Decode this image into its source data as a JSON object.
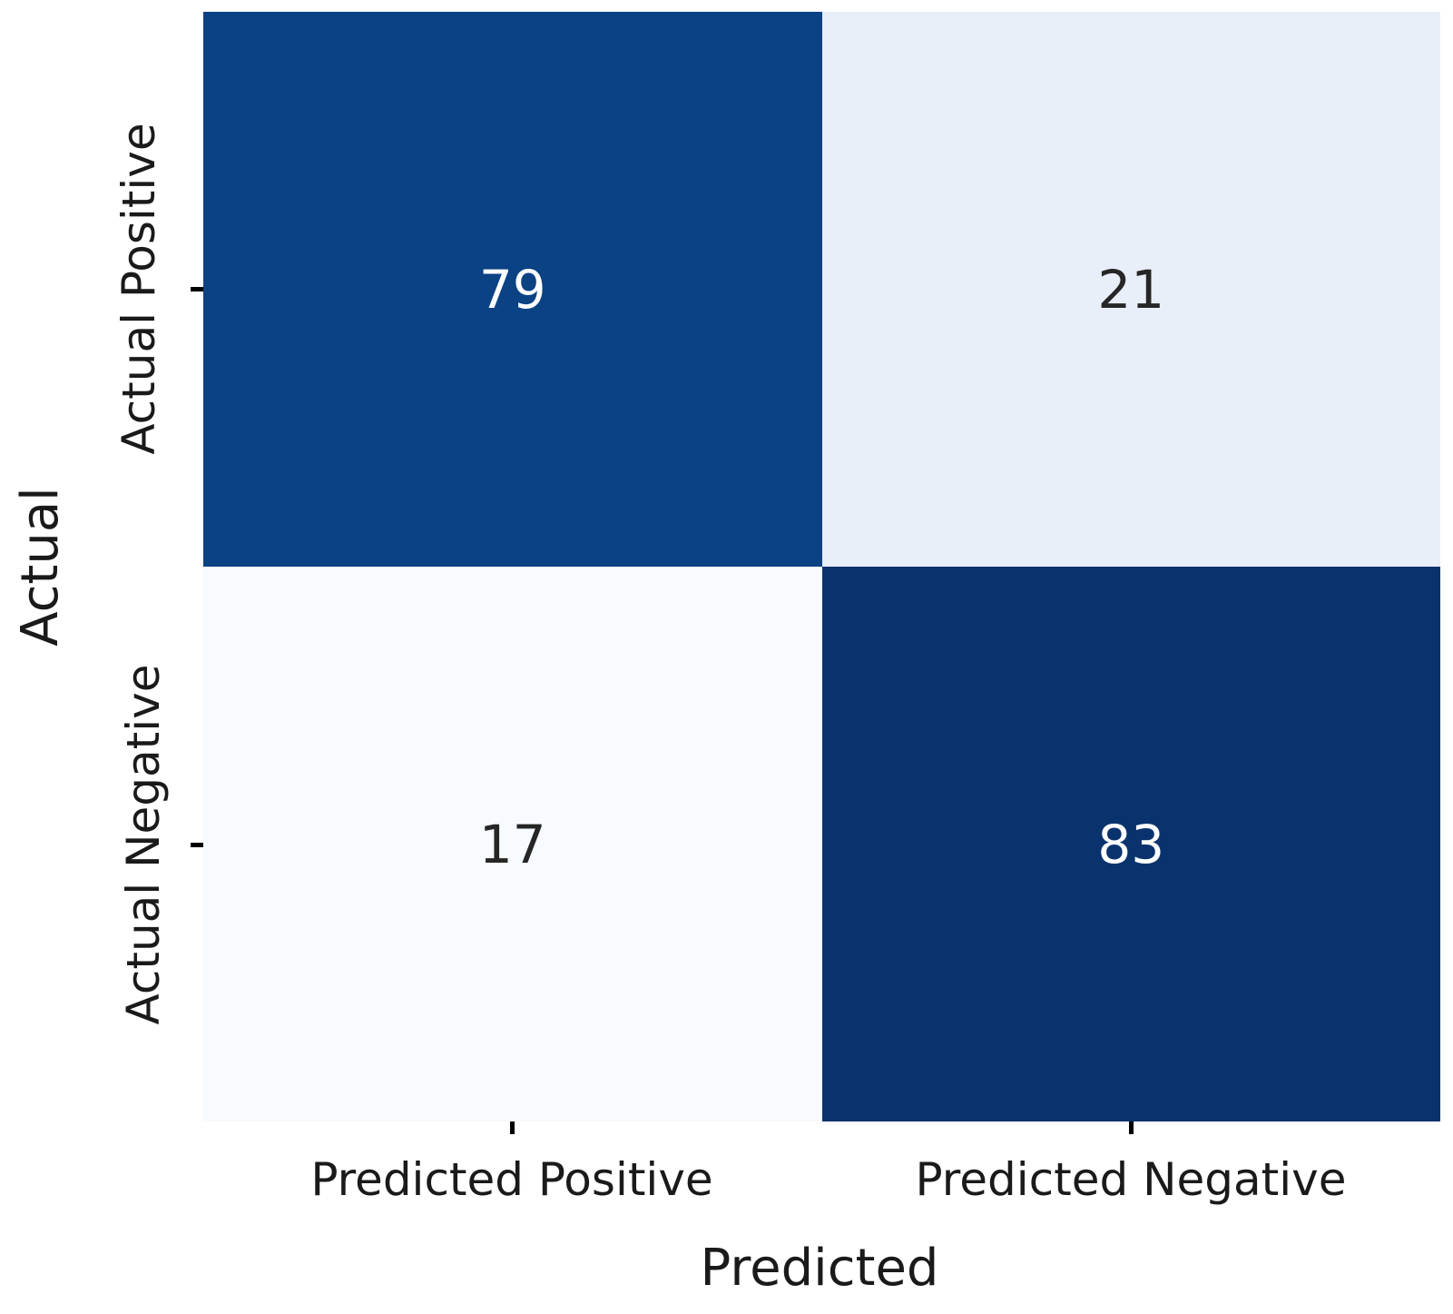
{
  "chart_data": {
    "type": "heatmap",
    "title": "",
    "xlabel": "Predicted",
    "ylabel": "Actual",
    "x_categories": [
      "Predicted Positive",
      "Predicted Negative"
    ],
    "y_categories": [
      "Actual Positive",
      "Actual Negative"
    ],
    "rows": [
      [
        79,
        21
      ],
      [
        17,
        83
      ]
    ],
    "colormap": "Blues",
    "color_scale": {
      "min_value": 17,
      "max_value": 83
    },
    "grid": false,
    "legend": "none",
    "cells": [
      {
        "row_label": "Actual Positive",
        "col_label": "Predicted Positive",
        "value": "79",
        "bg": "#0a4284",
        "fg": "#ffffff"
      },
      {
        "row_label": "Actual Positive",
        "col_label": "Predicted Negative",
        "value": "21",
        "bg": "#e8eff9",
        "fg": "#262626"
      },
      {
        "row_label": "Actual Negative",
        "col_label": "Predicted Positive",
        "value": "17",
        "bg": "#f7fafe",
        "fg": "#262626"
      },
      {
        "row_label": "Actual Negative",
        "col_label": "Predicted Negative",
        "value": "83",
        "bg": "#0a336e",
        "fg": "#ffffff"
      }
    ]
  },
  "colors": {
    "background": "#ffffff",
    "label_text": "#1a1a1a",
    "tick_mark": "#000000"
  }
}
